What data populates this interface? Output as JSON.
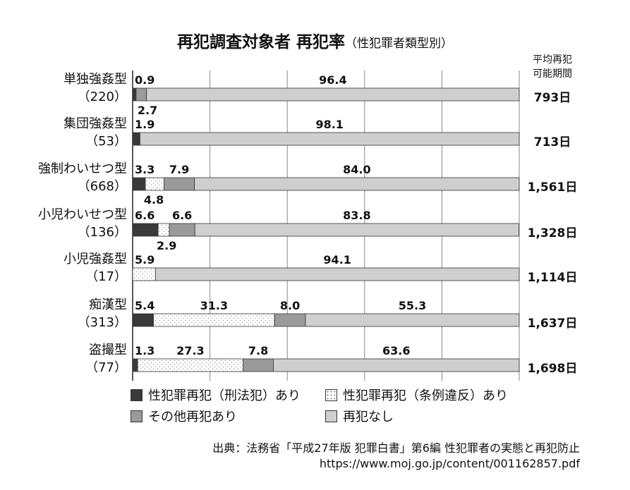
{
  "title": {
    "main": "再犯調査対象者 再犯率",
    "sub": "（性犯罪者類型別）"
  },
  "avg_header": [
    "平均再犯",
    "可能期間"
  ],
  "colors": {
    "sex_crime_penal": "#3a3a3a",
    "sex_crime_ordinance": "#ffffff",
    "other_recid": "#9a9a9a",
    "no_recid": "#cfcfcf",
    "grid": "#8a8a8a"
  },
  "chart_data": {
    "type": "bar",
    "orientation": "horizontal",
    "stacked": true,
    "xlim": [
      0,
      100
    ],
    "grid": true,
    "categories": [
      {
        "name": "単独強姦型",
        "n": "（220）",
        "avg": "793日"
      },
      {
        "name": "集団強姦型",
        "n": "（53）",
        "avg": "713日"
      },
      {
        "name": "強制わいせつ型",
        "n": "（668）",
        "avg": "1,561日"
      },
      {
        "name": "小児わいせつ型",
        "n": "（136）",
        "avg": "1,328日"
      },
      {
        "name": "小児強姦型",
        "n": "（17）",
        "avg": "1,114日"
      },
      {
        "name": "痴漢型",
        "n": "（313）",
        "avg": "1,637日"
      },
      {
        "name": "盗撮型",
        "n": "（77）",
        "avg": "1,698日"
      }
    ],
    "series": [
      {
        "name": "性犯罪再犯（刑法犯）あり",
        "values": [
          0.9,
          1.9,
          3.3,
          6.6,
          0,
          5.4,
          1.3
        ]
      },
      {
        "name": "性犯罪再犯（条例違反）あり",
        "values": [
          0,
          0,
          4.8,
          2.9,
          5.9,
          31.3,
          27.3
        ]
      },
      {
        "name": "その他再犯あり",
        "values": [
          2.7,
          0,
          7.9,
          6.6,
          0,
          8.0,
          7.8
        ]
      },
      {
        "name": "再犯なし",
        "values": [
          96.4,
          98.1,
          84.0,
          83.8,
          94.1,
          55.3,
          63.6
        ]
      }
    ],
    "labels": [
      [
        "0.9",
        null,
        "2.7",
        "96.4"
      ],
      [
        "1.9",
        null,
        null,
        "98.1"
      ],
      [
        "3.3",
        "4.8",
        "7.9",
        "84.0"
      ],
      [
        "6.6",
        "2.9",
        "6.6",
        "83.8"
      ],
      [
        null,
        "5.9",
        null,
        "94.1"
      ],
      [
        "5.4",
        "31.3",
        "8.0",
        "55.3"
      ],
      [
        "1.3",
        "27.3",
        "7.8",
        "63.6"
      ]
    ]
  },
  "source": {
    "line1": "出典：法務省「平成27年版 犯罪白書」第6編 性犯罪者の実態と再犯防止",
    "line2": "https://www.moj.go.jp/content/001162857.pdf"
  }
}
